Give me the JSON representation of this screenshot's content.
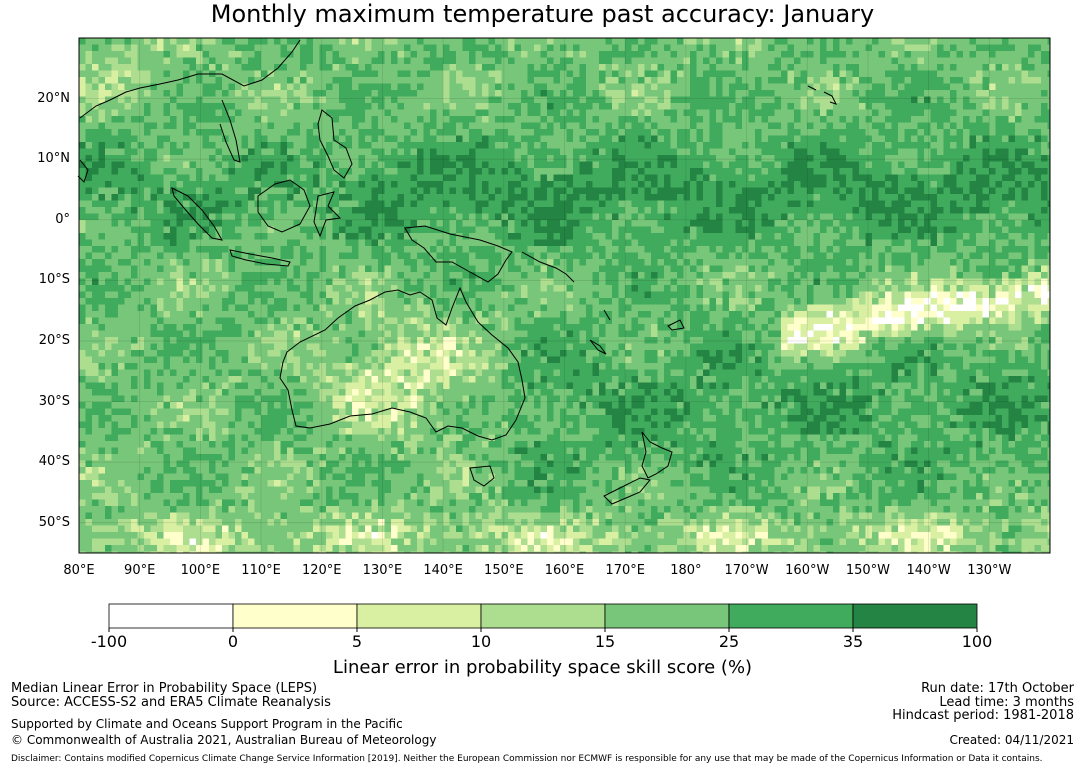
{
  "title": "Monthly maximum temperature past accuracy: January",
  "chart_data": {
    "type": "heatmap",
    "map_extent": {
      "lon_min": 80,
      "lon_max": 240,
      "lat_min": -55,
      "lat_max": 30
    },
    "lat_ticks": [
      {
        "value": 20,
        "label": "20°N"
      },
      {
        "value": 10,
        "label": "10°N"
      },
      {
        "value": 0,
        "label": "0°"
      },
      {
        "value": -10,
        "label": "10°S"
      },
      {
        "value": -20,
        "label": "20°S"
      },
      {
        "value": -30,
        "label": "30°S"
      },
      {
        "value": -40,
        "label": "40°S"
      },
      {
        "value": -50,
        "label": "50°S"
      }
    ],
    "lon_ticks": [
      {
        "value": 80,
        "label": "80°E"
      },
      {
        "value": 90,
        "label": "90°E"
      },
      {
        "value": 100,
        "label": "100°E"
      },
      {
        "value": 110,
        "label": "110°E"
      },
      {
        "value": 120,
        "label": "120°E"
      },
      {
        "value": 130,
        "label": "130°E"
      },
      {
        "value": 140,
        "label": "140°E"
      },
      {
        "value": 150,
        "label": "150°E"
      },
      {
        "value": 160,
        "label": "160°E"
      },
      {
        "value": 170,
        "label": "170°E"
      },
      {
        "value": 180,
        "label": "180°"
      },
      {
        "value": 190,
        "label": "170°W"
      },
      {
        "value": 200,
        "label": "160°W"
      },
      {
        "value": 210,
        "label": "150°W"
      },
      {
        "value": 220,
        "label": "140°W"
      },
      {
        "value": 230,
        "label": "130°W"
      }
    ],
    "colorbar": {
      "bounds": [
        -100,
        0,
        5,
        10,
        15,
        25,
        35,
        100
      ],
      "tick_labels": [
        "-100",
        "0",
        "5",
        "10",
        "15",
        "25",
        "35",
        "100"
      ],
      "colors": [
        "#ffffff",
        "#ffffcc",
        "#d9f0a3",
        "#addd8e",
        "#78c679",
        "#41ab5d",
        "#238443"
      ],
      "label": "Linear error in probability space skill score (%)"
    }
  },
  "footer": {
    "left_line1": "Median Linear Error in Probability Space (LEPS)",
    "left_line2": "Source: ACCESS-S2 and ERA5 Climate Reanalysis",
    "left_line3": "Supported by Climate and Oceans Support Program in the Pacific",
    "left_line4": "© Commonwealth of Australia 2021, Australian Bureau of Meteorology",
    "right_line1": "Run date: 17th October",
    "right_line2": "Lead time: 3 months",
    "right_line3": "Hindcast period: 1981-2018",
    "right_line4": "Created: 04/11/2021",
    "disclaimer": "Disclaimer: Contains modified Copernicus Climate Change Service Information [2019]. Neither the European Commission nor ECMWF is responsible for any use that may be made of the Copernicus Information or Data it contains."
  }
}
